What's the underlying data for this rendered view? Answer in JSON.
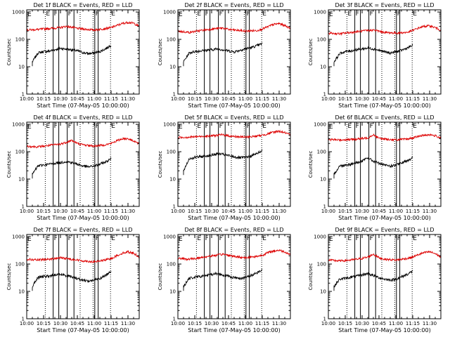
{
  "colors": {
    "black_series": "#000000",
    "red_series": "#dd0000",
    "axes": "#000000",
    "background": "#ffffff"
  },
  "common": {
    "xlabel": "Start Time (07-May-05 10:00:00)",
    "ylabel": "Counts/sec",
    "x_ticks": [
      "10:00",
      "10:15",
      "10:30",
      "10:45",
      "11:00",
      "11:15",
      "11:30"
    ],
    "y_ticks": [
      "1",
      "10",
      "100",
      "1000"
    ],
    "x_range_minutes": [
      0,
      100
    ],
    "y_range": [
      1,
      1200
    ],
    "y_scale": "log",
    "vlines": [
      {
        "x_min": 16.5,
        "style": "dotted",
        "label": "E"
      },
      {
        "x_min": 23.5,
        "style": "solid",
        "label": "F"
      },
      {
        "x_min": 28.5,
        "style": "solid",
        "label": ""
      },
      {
        "x_min": 36.0,
        "style": "solid",
        "label": "F"
      },
      {
        "x_min": 42.0,
        "style": "solid",
        "label": ""
      },
      {
        "x_min": 47.5,
        "style": "dotted",
        "label": ""
      },
      {
        "x_min": 59.0,
        "style": "dotted",
        "label": ""
      },
      {
        "x_min": 60.5,
        "style": "solid",
        "label": "F"
      },
      {
        "x_min": 63.5,
        "style": "solid",
        "label": ""
      },
      {
        "x_min": 74.5,
        "style": "dotted",
        "label": "E"
      }
    ],
    "corner_label": "E"
  },
  "chart_data": [
    {
      "type": "line",
      "title": "Det 1f BLACK = Events, RED = LLD",
      "series": [
        {
          "name": "BLACK = Events",
          "x": [
            5,
            10,
            15,
            20,
            25,
            30,
            35,
            40,
            45,
            50,
            55,
            60,
            65,
            70,
            75
          ],
          "values": [
            15,
            32,
            36,
            37,
            42,
            47,
            44,
            42,
            38,
            33,
            30,
            32,
            36,
            45,
            62
          ]
        },
        {
          "name": "RED = LLD",
          "x": [
            0,
            10,
            20,
            30,
            35,
            40,
            45,
            50,
            60,
            70,
            75,
            80,
            85,
            90,
            95,
            100
          ],
          "values": [
            220,
            230,
            250,
            270,
            300,
            280,
            250,
            240,
            220,
            250,
            270,
            320,
            380,
            420,
            390,
            300
          ]
        }
      ]
    },
    {
      "type": "line",
      "title": "Det 2f BLACK = Events, RED = LLD",
      "series": [
        {
          "name": "BLACK = Events",
          "x": [
            5,
            10,
            15,
            20,
            25,
            30,
            35,
            40,
            45,
            50,
            55,
            60,
            65,
            70,
            75
          ],
          "values": [
            15,
            32,
            36,
            38,
            40,
            42,
            45,
            42,
            38,
            35,
            40,
            45,
            50,
            58,
            70
          ]
        },
        {
          "name": "RED = LLD",
          "x": [
            0,
            10,
            20,
            30,
            35,
            40,
            45,
            50,
            60,
            70,
            75,
            80,
            85,
            90,
            95,
            100
          ],
          "values": [
            200,
            180,
            210,
            240,
            250,
            260,
            230,
            220,
            200,
            210,
            240,
            290,
            350,
            380,
            320,
            260
          ]
        }
      ]
    },
    {
      "type": "line",
      "title": "Det 3f BLACK = Events, RED = LLD",
      "series": [
        {
          "name": "BLACK = Events",
          "x": [
            5,
            10,
            15,
            20,
            25,
            30,
            35,
            40,
            45,
            50,
            55,
            60,
            65,
            70,
            75
          ],
          "values": [
            15,
            30,
            36,
            38,
            42,
            45,
            48,
            45,
            40,
            35,
            32,
            35,
            40,
            48,
            60
          ]
        },
        {
          "name": "RED = LLD",
          "x": [
            0,
            10,
            20,
            30,
            35,
            40,
            45,
            50,
            60,
            70,
            75,
            80,
            85,
            90,
            95,
            100
          ],
          "values": [
            170,
            160,
            180,
            200,
            210,
            220,
            200,
            180,
            170,
            180,
            210,
            260,
            300,
            310,
            270,
            220
          ]
        }
      ]
    },
    {
      "type": "line",
      "title": "Det 4f BLACK = Events, RED = LLD",
      "series": [
        {
          "name": "BLACK = Events",
          "x": [
            5,
            10,
            15,
            20,
            25,
            30,
            35,
            40,
            45,
            50,
            55,
            60,
            65,
            70,
            75
          ],
          "values": [
            15,
            30,
            33,
            35,
            38,
            40,
            44,
            40,
            35,
            30,
            28,
            30,
            35,
            42,
            55
          ]
        },
        {
          "name": "RED = LLD",
          "x": [
            0,
            10,
            20,
            30,
            35,
            40,
            45,
            50,
            60,
            70,
            75,
            80,
            85,
            90,
            95,
            100
          ],
          "values": [
            160,
            150,
            170,
            190,
            220,
            260,
            200,
            180,
            160,
            180,
            200,
            250,
            300,
            300,
            250,
            190
          ]
        }
      ]
    },
    {
      "type": "line",
      "title": "Det 5f BLACK = Events, RED = LLD",
      "series": [
        {
          "name": "BLACK = Events",
          "x": [
            5,
            10,
            15,
            20,
            25,
            30,
            35,
            40,
            45,
            50,
            55,
            60,
            65,
            70,
            75
          ],
          "values": [
            20,
            55,
            62,
            66,
            70,
            75,
            85,
            80,
            72,
            65,
            60,
            62,
            70,
            85,
            110
          ]
        },
        {
          "name": "RED = LLD",
          "x": [
            0,
            10,
            20,
            30,
            35,
            40,
            45,
            50,
            60,
            70,
            75,
            80,
            85,
            90,
            95,
            100
          ],
          "values": [
            330,
            340,
            360,
            380,
            400,
            420,
            380,
            360,
            340,
            370,
            400,
            450,
            520,
            560,
            500,
            400
          ]
        }
      ]
    },
    {
      "type": "line",
      "title": "Det 6f BLACK = Events, RED = LLD",
      "series": [
        {
          "name": "BLACK = Events",
          "x": [
            5,
            10,
            15,
            20,
            25,
            30,
            35,
            40,
            45,
            50,
            55,
            60,
            65,
            70,
            75
          ],
          "values": [
            15,
            30,
            33,
            35,
            40,
            45,
            60,
            45,
            38,
            32,
            30,
            32,
            38,
            48,
            60
          ]
        },
        {
          "name": "RED = LLD",
          "x": [
            0,
            10,
            20,
            30,
            35,
            40,
            45,
            50,
            60,
            70,
            75,
            80,
            85,
            90,
            95,
            100
          ],
          "values": [
            280,
            270,
            280,
            300,
            320,
            420,
            310,
            290,
            270,
            290,
            320,
            360,
            400,
            420,
            380,
            320
          ]
        }
      ]
    },
    {
      "type": "line",
      "title": "Det 7f BLACK = Events, RED = LLD",
      "series": [
        {
          "name": "BLACK = Events",
          "x": [
            5,
            10,
            15,
            20,
            25,
            30,
            35,
            40,
            45,
            50,
            55,
            60,
            65,
            70,
            75
          ],
          "values": [
            15,
            32,
            35,
            36,
            40,
            42,
            38,
            35,
            30,
            26,
            24,
            26,
            30,
            38,
            55
          ]
        },
        {
          "name": "RED = LLD",
          "x": [
            0,
            10,
            20,
            30,
            35,
            40,
            45,
            50,
            60,
            70,
            75,
            80,
            85,
            90,
            95,
            100
          ],
          "values": [
            150,
            140,
            150,
            170,
            160,
            150,
            140,
            130,
            120,
            140,
            160,
            200,
            250,
            280,
            250,
            180
          ]
        }
      ]
    },
    {
      "type": "line",
      "title": "Det 8f BLACK = Events, RED = LLD",
      "series": [
        {
          "name": "BLACK = Events",
          "x": [
            5,
            10,
            15,
            20,
            25,
            30,
            35,
            40,
            45,
            50,
            55,
            60,
            65,
            70,
            75
          ],
          "values": [
            15,
            30,
            33,
            35,
            38,
            42,
            45,
            40,
            36,
            32,
            30,
            32,
            38,
            48,
            60
          ]
        },
        {
          "name": "RED = LLD",
          "x": [
            0,
            10,
            20,
            30,
            35,
            40,
            45,
            50,
            60,
            70,
            75,
            80,
            85,
            90,
            95,
            100
          ],
          "values": [
            160,
            150,
            170,
            200,
            210,
            230,
            210,
            190,
            170,
            190,
            210,
            260,
            300,
            320,
            280,
            220
          ]
        }
      ]
    },
    {
      "type": "line",
      "title": "Det 9f BLACK = Events, RED = LLD",
      "series": [
        {
          "name": "BLACK = Events",
          "x": [
            5,
            10,
            15,
            20,
            25,
            30,
            35,
            40,
            45,
            50,
            55,
            60,
            65,
            70,
            75
          ],
          "values": [
            15,
            28,
            30,
            33,
            36,
            40,
            45,
            38,
            32,
            28,
            26,
            28,
            34,
            42,
            55
          ]
        },
        {
          "name": "RED = LLD",
          "x": [
            0,
            10,
            20,
            30,
            35,
            40,
            45,
            50,
            60,
            70,
            75,
            80,
            85,
            90,
            95,
            100
          ],
          "values": [
            140,
            130,
            140,
            160,
            180,
            230,
            170,
            150,
            140,
            160,
            180,
            220,
            260,
            280,
            240,
            180
          ]
        }
      ]
    }
  ]
}
